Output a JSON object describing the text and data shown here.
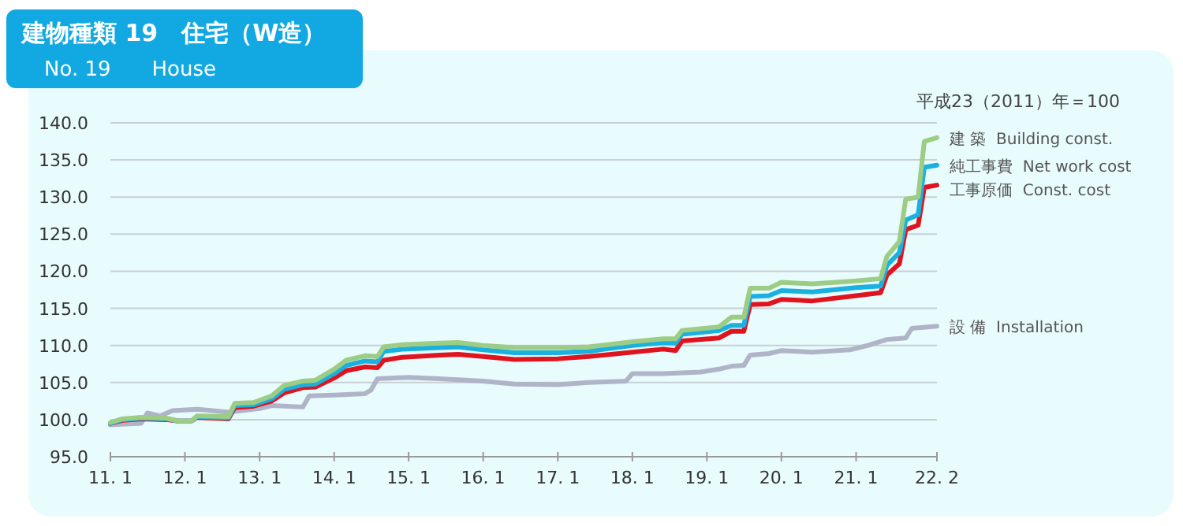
{
  "chart_data": {
    "type": "line",
    "title": "建物種類 19　住宅（W造）",
    "subtitle": "No. 19　　House",
    "annotations": [
      "平成23（2011）年＝100"
    ],
    "xlim": [
      "2011-01",
      "2022-02"
    ],
    "xticks": [
      {
        "value": "2011-01",
        "label": "11. 1"
      },
      {
        "value": "2012-01",
        "label": "12. 1"
      },
      {
        "value": "2013-01",
        "label": "13. 1"
      },
      {
        "value": "2014-01",
        "label": "14. 1"
      },
      {
        "value": "2015-01",
        "label": "15. 1"
      },
      {
        "value": "2016-01",
        "label": "16. 1"
      },
      {
        "value": "2017-01",
        "label": "17. 1"
      },
      {
        "value": "2018-01",
        "label": "18. 1"
      },
      {
        "value": "2019-01",
        "label": "19. 1"
      },
      {
        "value": "2020-01",
        "label": "20. 1"
      },
      {
        "value": "2021-01",
        "label": "21. 1"
      },
      {
        "value": "2022-02",
        "label": "22. 2"
      }
    ],
    "ylim": [
      95,
      140
    ],
    "yticks": [
      {
        "value": 95,
        "label": "95.0"
      },
      {
        "value": 100,
        "label": "100.0"
      },
      {
        "value": 105,
        "label": "105.0"
      },
      {
        "value": 110,
        "label": "110.0"
      },
      {
        "value": 115,
        "label": "115.0"
      },
      {
        "value": 120,
        "label": "120.0"
      },
      {
        "value": 125,
        "label": "125.0"
      },
      {
        "value": 130,
        "label": "130.0"
      },
      {
        "value": 135,
        "label": "135.0"
      },
      {
        "value": 140,
        "label": "140.0"
      }
    ],
    "grid": "y",
    "marker": "none",
    "line_style": "solid",
    "series": [
      {
        "name": "設 備  Installation",
        "color": "#b0b4c8",
        "x": [
          "2011-01",
          "2011-06",
          "2011-07",
          "2011-09",
          "2011-11",
          "2012-03",
          "2012-08",
          "2013-01",
          "2013-03",
          "2013-08",
          "2013-09",
          "2014-01",
          "2014-06",
          "2014-07",
          "2014-08",
          "2015-01",
          "2015-06",
          "2016-01",
          "2016-06",
          "2017-01",
          "2017-06",
          "2017-12",
          "2018-01",
          "2018-06",
          "2018-12",
          "2019-03",
          "2019-05",
          "2019-07",
          "2019-08",
          "2019-11",
          "2020-01",
          "2020-06",
          "2020-12",
          "2021-03",
          "2021-06",
          "2021-09",
          "2021-10",
          "2022-02"
        ],
        "values": [
          99.3,
          99.5,
          100.9,
          100.5,
          101.2,
          101.4,
          101.0,
          101.5,
          101.9,
          101.7,
          103.2,
          103.3,
          103.5,
          104.0,
          105.5,
          105.7,
          105.5,
          105.2,
          104.8,
          104.7,
          105.0,
          105.2,
          106.2,
          106.2,
          106.4,
          106.8,
          107.2,
          107.3,
          108.7,
          108.9,
          109.3,
          109.1,
          109.4,
          110.0,
          110.8,
          111.0,
          112.3,
          112.6
        ]
      },
      {
        "name": "工事原価  Const. cost",
        "color": "#e0141e",
        "x": [
          "2011-01",
          "2011-03",
          "2011-06",
          "2011-10",
          "2011-12",
          "2012-02",
          "2012-03",
          "2012-08",
          "2012-09",
          "2012-12",
          "2013-03",
          "2013-05",
          "2013-08",
          "2013-10",
          "2014-01",
          "2014-03",
          "2014-06",
          "2014-08",
          "2014-09",
          "2014-12",
          "2015-06",
          "2015-09",
          "2016-01",
          "2016-06",
          "2017-01",
          "2017-06",
          "2018-01",
          "2018-06",
          "2018-08",
          "2018-09",
          "2019-03",
          "2019-05",
          "2019-07",
          "2019-08",
          "2019-11",
          "2020-01",
          "2020-06",
          "2021-01",
          "2021-05",
          "2021-06",
          "2021-08",
          "2021-09",
          "2021-11",
          "2021-12",
          "2022-02"
        ],
        "values": [
          99.5,
          99.9,
          100.1,
          100.0,
          99.8,
          99.8,
          100.3,
          100.1,
          101.6,
          101.8,
          102.5,
          103.6,
          104.3,
          104.4,
          105.6,
          106.6,
          107.1,
          107.0,
          108.0,
          108.4,
          108.7,
          108.8,
          108.5,
          108.1,
          108.2,
          108.5,
          109.1,
          109.5,
          109.3,
          110.6,
          111.0,
          111.9,
          111.9,
          115.5,
          115.6,
          116.2,
          116.0,
          116.7,
          117.1,
          119.5,
          121.0,
          125.6,
          126.2,
          131.3,
          131.6
        ]
      },
      {
        "name": "純工事費  Net work cost",
        "color": "#1ab0e0",
        "x": [
          "2011-01",
          "2011-03",
          "2011-06",
          "2011-10",
          "2011-12",
          "2012-02",
          "2012-03",
          "2012-08",
          "2012-09",
          "2012-12",
          "2013-03",
          "2013-05",
          "2013-08",
          "2013-10",
          "2014-01",
          "2014-03",
          "2014-06",
          "2014-08",
          "2014-09",
          "2014-12",
          "2015-06",
          "2015-09",
          "2016-01",
          "2016-06",
          "2017-01",
          "2017-06",
          "2018-01",
          "2018-06",
          "2018-08",
          "2018-09",
          "2019-03",
          "2019-05",
          "2019-07",
          "2019-08",
          "2019-11",
          "2020-01",
          "2020-06",
          "2021-01",
          "2021-05",
          "2021-06",
          "2021-08",
          "2021-09",
          "2021-11",
          "2021-12",
          "2022-02"
        ],
        "values": [
          99.5,
          100.0,
          100.2,
          100.1,
          99.8,
          99.8,
          100.4,
          100.2,
          101.9,
          102.0,
          102.8,
          104.1,
          104.7,
          104.8,
          106.2,
          107.3,
          107.9,
          107.8,
          109.2,
          109.5,
          109.7,
          109.8,
          109.4,
          109.0,
          109.0,
          109.2,
          110.0,
          110.4,
          110.3,
          111.5,
          112.0,
          112.7,
          112.7,
          116.6,
          116.7,
          117.4,
          117.2,
          117.8,
          118.0,
          120.8,
          122.5,
          126.9,
          127.6,
          134.0,
          134.3
        ]
      },
      {
        "name": "建 築  Building const.",
        "color": "#9dcc84",
        "x": [
          "2011-01",
          "2011-03",
          "2011-06",
          "2011-10",
          "2011-12",
          "2012-02",
          "2012-03",
          "2012-08",
          "2012-09",
          "2012-12",
          "2013-03",
          "2013-05",
          "2013-08",
          "2013-10",
          "2014-01",
          "2014-03",
          "2014-06",
          "2014-08",
          "2014-09",
          "2014-12",
          "2015-06",
          "2015-09",
          "2016-01",
          "2016-06",
          "2017-01",
          "2017-06",
          "2018-01",
          "2018-06",
          "2018-08",
          "2018-09",
          "2019-03",
          "2019-05",
          "2019-07",
          "2019-08",
          "2019-11",
          "2020-01",
          "2020-06",
          "2021-01",
          "2021-05",
          "2021-06",
          "2021-08",
          "2021-09",
          "2021-11",
          "2021-12",
          "2022-02"
        ],
        "values": [
          99.6,
          100.1,
          100.3,
          100.2,
          99.8,
          99.8,
          100.5,
          100.4,
          102.2,
          102.3,
          103.2,
          104.6,
          105.2,
          105.3,
          106.8,
          108.0,
          108.6,
          108.5,
          109.8,
          110.1,
          110.3,
          110.4,
          110.0,
          109.7,
          109.7,
          109.8,
          110.5,
          110.9,
          110.9,
          112.0,
          112.5,
          113.8,
          113.8,
          117.7,
          117.7,
          118.5,
          118.3,
          118.7,
          119.0,
          122.0,
          124.0,
          129.7,
          130.0,
          137.5,
          138.0
        ]
      }
    ]
  }
}
